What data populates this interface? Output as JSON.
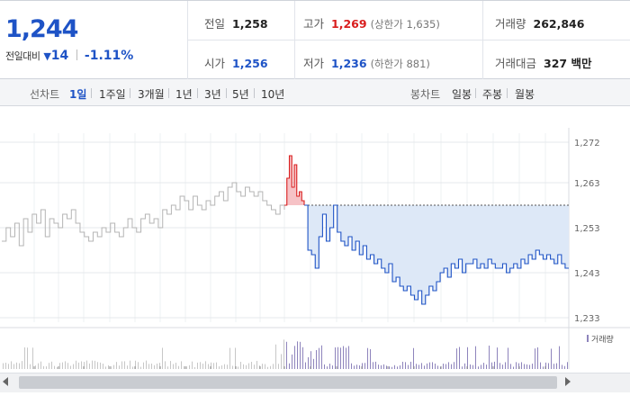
{
  "quote": {
    "price": "1,244",
    "change_label": "전일대비",
    "change_arrow": "▼",
    "change_value": "14",
    "change_pct": "-1.11%"
  },
  "stats": {
    "prev_close": {
      "label": "전일",
      "value": "1,258"
    },
    "high": {
      "label": "고가",
      "value": "1,269",
      "sub": "(상한가 1,635)"
    },
    "volume": {
      "label": "거래량",
      "value": "262,846"
    },
    "open": {
      "label": "시가",
      "value": "1,256"
    },
    "low": {
      "label": "저가",
      "value": "1,236",
      "sub": "(하한가 881)"
    },
    "amount": {
      "label": "거래대금",
      "value": "327 백만"
    }
  },
  "line_tabs": {
    "title": "선차트",
    "items": [
      "1일",
      "1주일",
      "3개월",
      "1년",
      "3년",
      "5년",
      "10년"
    ],
    "active": "1일"
  },
  "candle_tabs": {
    "title": "봉차트",
    "items": [
      "일봉",
      "주봉",
      "월봉"
    ]
  },
  "colors": {
    "up": "#d91e1e",
    "down": "#1e53c6",
    "prev_day_line": "#b4b4b4",
    "fill_below_prev": "#dde8f7",
    "fill_above_prev": "#f6c2c6",
    "volume_bar": "#8e84bc"
  },
  "chart_data": {
    "type": "line",
    "reference_line": 1258,
    "ylim": [
      1232,
      1274
    ],
    "y_ticks": [
      "1,272",
      "1,263",
      "1,253",
      "1,243",
      "1,233"
    ],
    "y_tick_values": [
      1272,
      1263,
      1253,
      1243,
      1233
    ],
    "volume_legend": "거래량",
    "series": [
      {
        "values": [
          1250,
          1253,
          1251,
          1254,
          1249,
          1255,
          1252,
          1256,
          1254,
          1257,
          1251,
          1255,
          1254,
          1253,
          1256,
          1255,
          1257,
          1254,
          1252,
          1251,
          1250,
          1252,
          1251,
          1253,
          1252,
          1254,
          1252,
          1251,
          1253,
          1255,
          1253,
          1252,
          1255,
          1256,
          1254,
          1255,
          1253,
          1257,
          1256,
          1258,
          1257,
          1260,
          1259,
          1257,
          1260,
          1258,
          1257,
          1259,
          1258,
          1260,
          1261,
          1259,
          1262,
          1263,
          1261,
          1260,
          1262,
          1261,
          1260,
          1261,
          1259,
          1258,
          1257,
          1256,
          1258,
          1257
        ]
      },
      {
        "values": [
          1258,
          1264,
          1269,
          1262,
          1267,
          1260,
          1261,
          1259,
          1258
        ]
      },
      {
        "values": [
          1258,
          1248,
          1247,
          1244,
          1251,
          1256,
          1250,
          1253,
          1258,
          1252,
          1250,
          1249,
          1251,
          1248,
          1250,
          1247,
          1249,
          1246,
          1247,
          1245,
          1246,
          1244,
          1243,
          1245,
          1241,
          1242,
          1240,
          1239,
          1240,
          1238,
          1237,
          1239,
          1236,
          1238,
          1240,
          1239,
          1241,
          1243,
          1244,
          1242,
          1245,
          1244,
          1246,
          1243,
          1245,
          1245,
          1246,
          1244,
          1245,
          1244,
          1246,
          1245,
          1244,
          1244,
          1245,
          1243,
          1244,
          1245,
          1244,
          1246,
          1245,
          1247,
          1246,
          1248,
          1247,
          1246,
          1247,
          1246,
          1245,
          1247,
          1245,
          1244,
          1244
        ]
      }
    ]
  }
}
